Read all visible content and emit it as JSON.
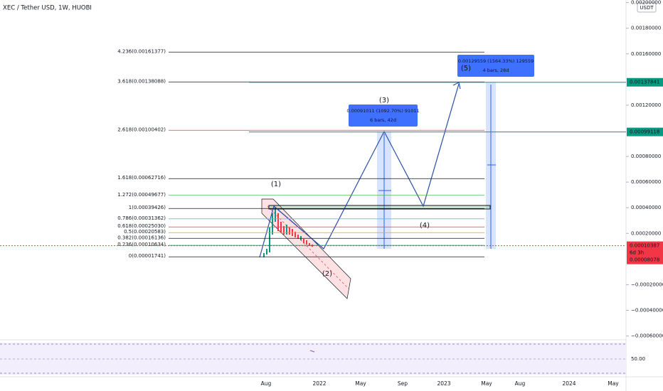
{
  "header": {
    "symbol": "XEC / Tether USD, 1W, HUOBI",
    "currency": "USDT"
  },
  "price_axis": {
    "ylim": [
      -0.00063,
      0.00202
    ],
    "yticks": [
      {
        "value": 0.002,
        "label": "0.00200000"
      },
      {
        "value": 0.0018,
        "label": "0.00180000"
      },
      {
        "value": 0.0016,
        "label": "0.00160000"
      },
      {
        "value": 0.0012,
        "label": "0.00120000"
      },
      {
        "value": 0.0008,
        "label": "0.00080000"
      },
      {
        "value": 0.0006,
        "label": "0.00060000"
      },
      {
        "value": 0.0004,
        "label": "0.00040000"
      },
      {
        "value": 0.0002,
        "label": "0.00020000"
      },
      {
        "value": -0.0002,
        "label": "−0.00020000"
      },
      {
        "value": -0.0004,
        "label": "−0.00040000"
      },
      {
        "value": -0.0006,
        "label": "−0.00060000"
      }
    ]
  },
  "fib_levels": [
    {
      "label": "4.236(0.00161377)",
      "value": 0.00161377,
      "color": "#131722"
    },
    {
      "label": "3.618(0.00138088)",
      "value": 0.00138088,
      "color": "#131722"
    },
    {
      "label": "2.618(0.00100402)",
      "value": 0.00100402,
      "color": "#f23645"
    },
    {
      "label": "1.618(0.00062716)",
      "value": 0.00062716,
      "color": "#131722"
    },
    {
      "label": "1.272(0.00049677)",
      "value": 0.00049677,
      "color": "#4caf50"
    },
    {
      "label": "1(0.00039426)",
      "value": 0.00039426,
      "color": "#131722"
    },
    {
      "label": "0.786(0.00031362)",
      "value": 0.00031362,
      "color": "#64b5f6"
    },
    {
      "label": "0.618(0.00025030)",
      "value": 0.0002503,
      "color": "#f23645"
    },
    {
      "label": "0.5(0.00020583)",
      "value": 0.00020583,
      "color": "#ff9800"
    },
    {
      "label": "0.382(0.00016136)",
      "value": 0.00016136,
      "color": "#131722"
    },
    {
      "label": "0.236(0.00010634)",
      "value": 0.00010634,
      "color": "#089981"
    },
    {
      "label": "0(0.00001741)",
      "value": 1.741e-05,
      "color": "#131722"
    }
  ],
  "price_tags": [
    {
      "label": "0.00137841",
      "value": 0.00137841,
      "color": "#089981"
    },
    {
      "label": "0.00099118",
      "value": 0.00099118,
      "color": "#089981"
    },
    {
      "label": "0.00010387",
      "value": 0.00010387,
      "color": "#f23645"
    }
  ],
  "countdown": "6d 3h",
  "last_price": "0.00008078",
  "waves": [
    "(1)",
    "(2)",
    "(3)",
    "(4)",
    "(5)"
  ],
  "measures": [
    {
      "text": "0.00091011 (1092.70%) 91011",
      "sub": "6 bars, 42d"
    },
    {
      "text": "0.00129559 (1564.33%) 129559",
      "sub": "4 bars, 28d"
    }
  ],
  "time_axis": [
    "Aug",
    "2022",
    "May",
    "Sep",
    "2023",
    "May",
    "Aug",
    "2024",
    "May"
  ],
  "indicator_tick": "50.00"
}
